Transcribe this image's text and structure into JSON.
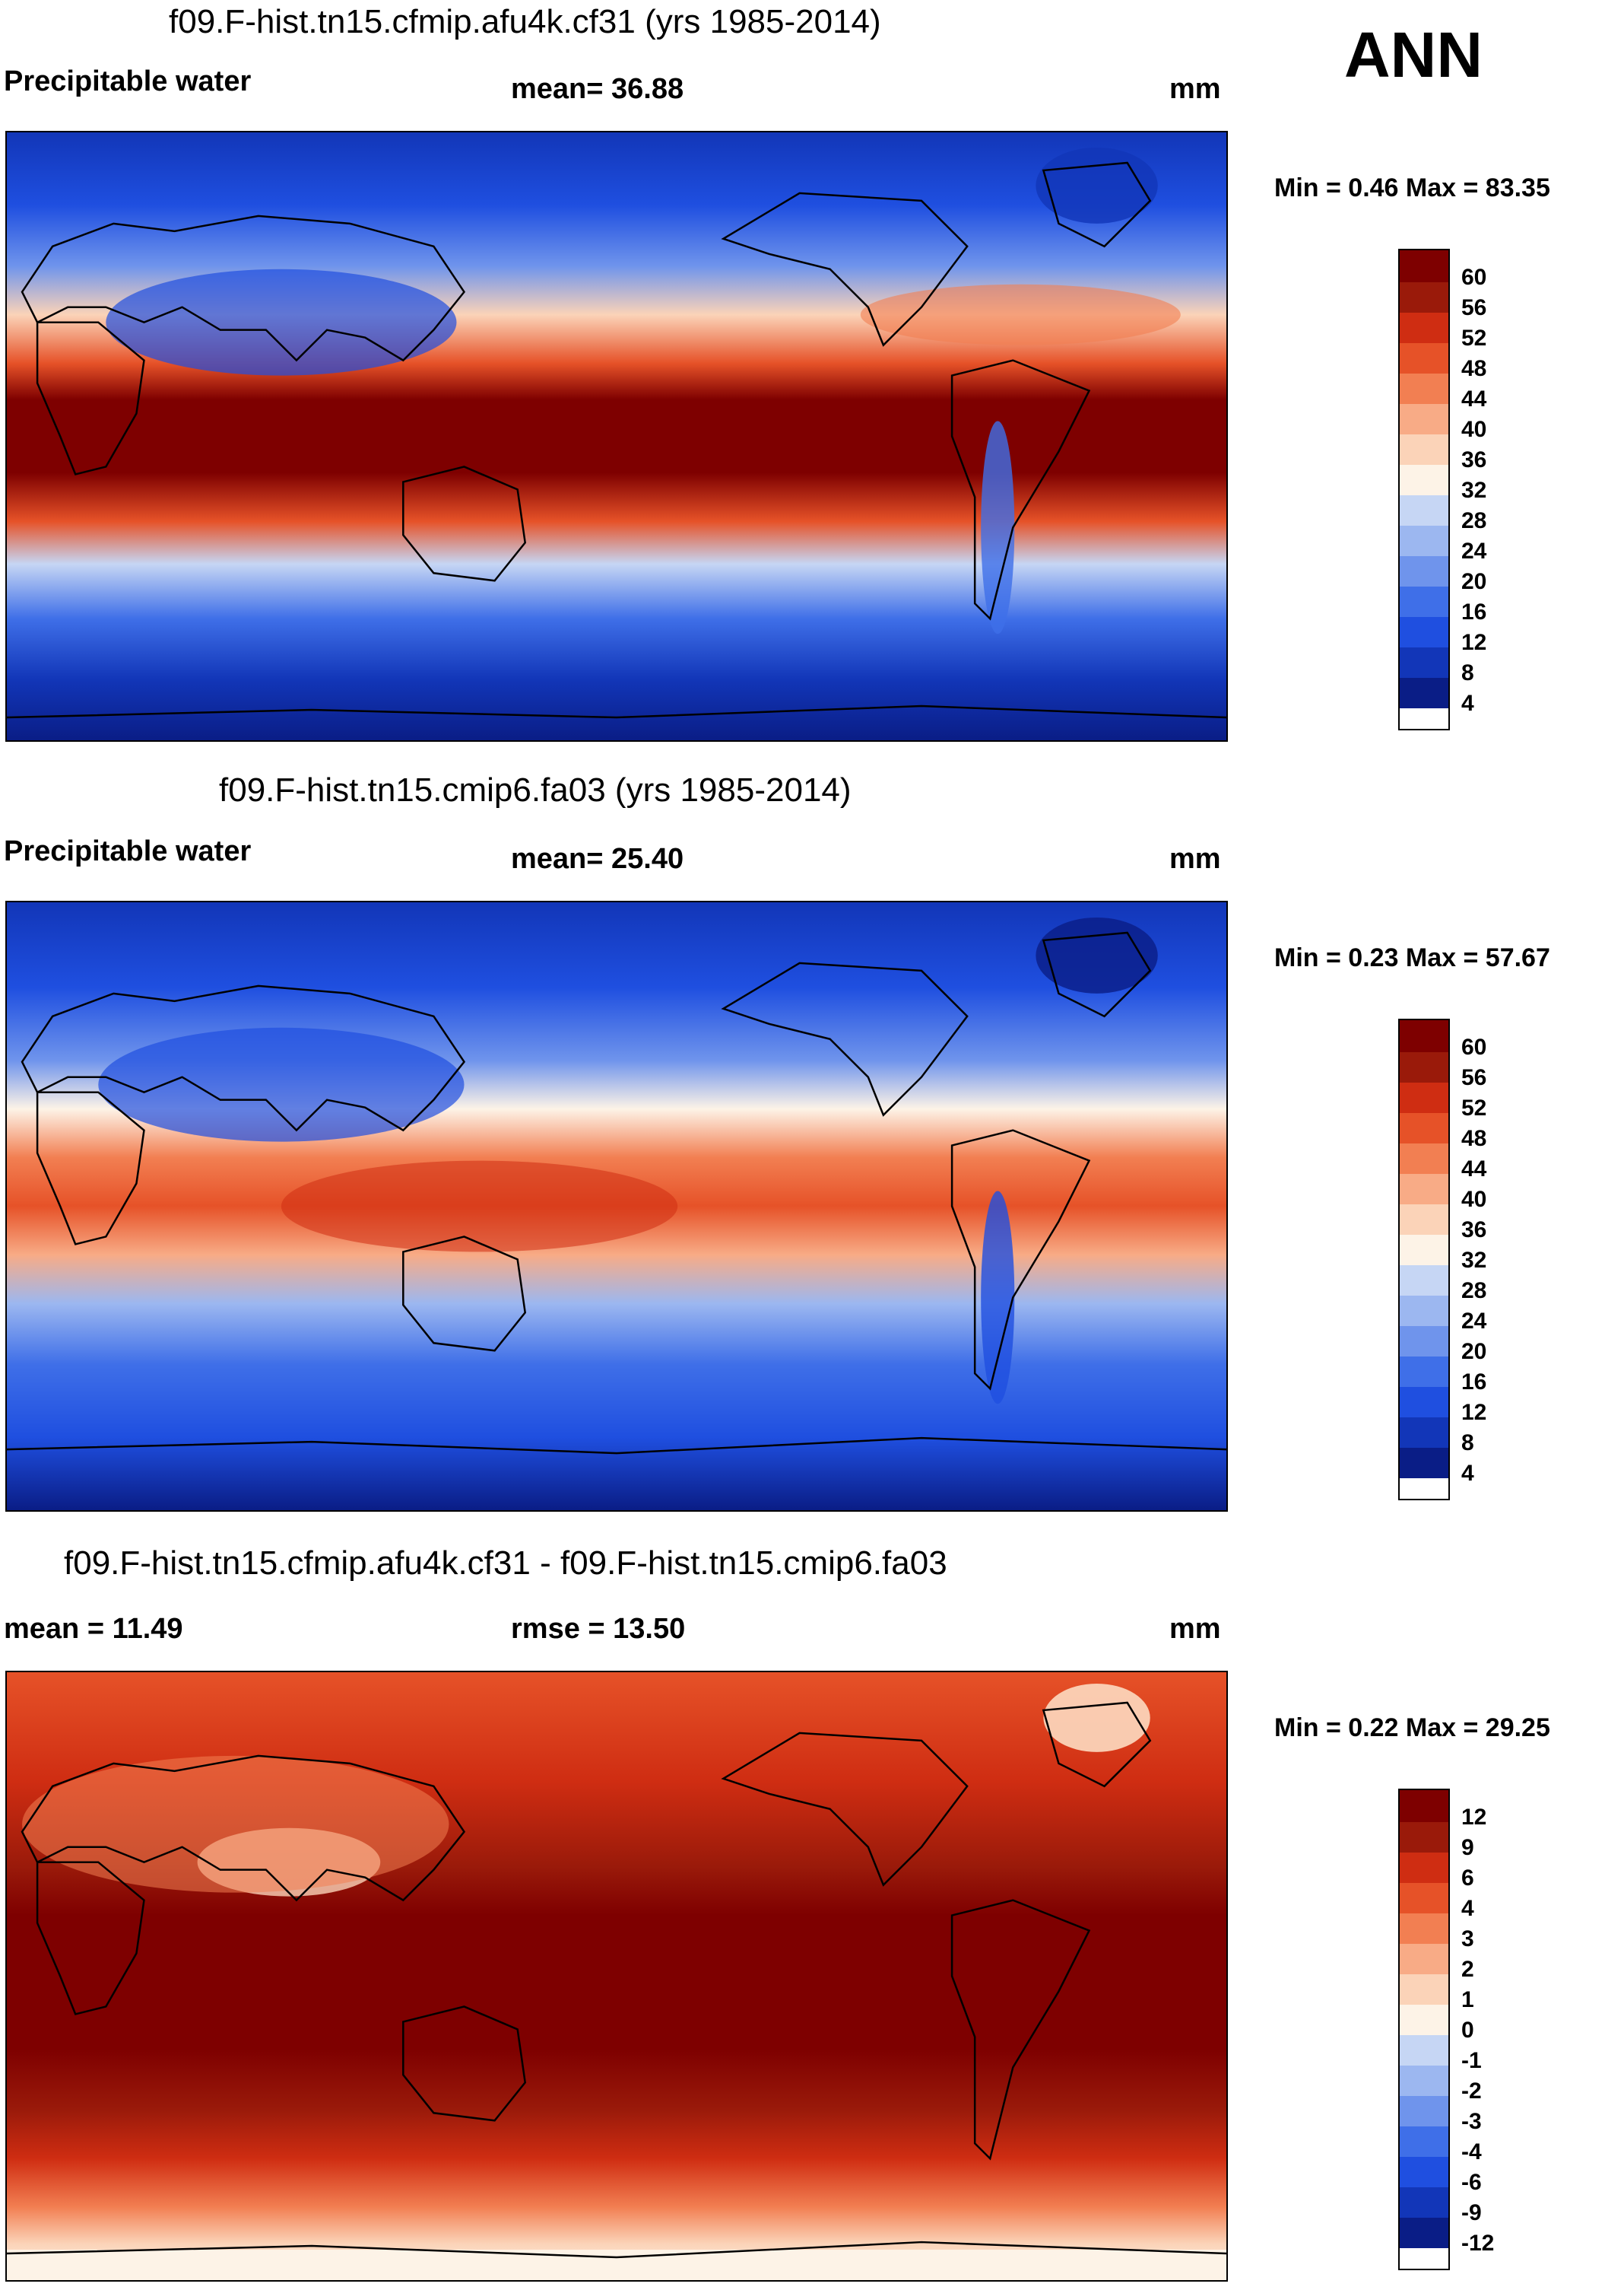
{
  "season": "ANN",
  "colors": {
    "seq": [
      "#0a1d86",
      "#1236b8",
      "#1f4fe0",
      "#3f6fe8",
      "#6f94ec",
      "#9cb7f0",
      "#c6d6f4",
      "#fdf3e7",
      "#fbd3b8",
      "#f8ab86",
      "#f27f52",
      "#e65228",
      "#cf2d12",
      "#9a1a0a",
      "#7e0000"
    ],
    "diff": [
      "#0a1d86",
      "#1236b8",
      "#1f4fe0",
      "#3f6fe8",
      "#6f94ec",
      "#9cb7f0",
      "#c6d6f4",
      "#fdf3e7",
      "#fbd3b8",
      "#f8ab86",
      "#f27f52",
      "#e65228",
      "#cf2d12",
      "#9a1a0a",
      "#7e0000"
    ]
  },
  "panels": [
    {
      "title": "f09.F-hist.tn15.cfmip.afu4k.cf31 (yrs 1985-2014)",
      "left_label": "Precipitable water",
      "center_label": "mean=  36.88",
      "units": "mm",
      "minmax": "Min =   0.46 Max =  83.35",
      "ticks": [
        "60",
        "56",
        "52",
        "48",
        "44",
        "40",
        "36",
        "32",
        "28",
        "24",
        "20",
        "16",
        "12",
        "8",
        "4"
      ]
    },
    {
      "title": "f09.F-hist.tn15.cmip6.fa03 (yrs 1985-2014)",
      "left_label": "Precipitable water",
      "center_label": "mean=  25.40",
      "units": "mm",
      "minmax": "Min =   0.23 Max =  57.67",
      "ticks": [
        "60",
        "56",
        "52",
        "48",
        "44",
        "40",
        "36",
        "32",
        "28",
        "24",
        "20",
        "16",
        "12",
        "8",
        "4"
      ]
    },
    {
      "title": "f09.F-hist.tn15.cfmip.afu4k.cf31 - f09.F-hist.tn15.cmip6.fa03",
      "left_label": "mean =  11.49",
      "center_label": "rmse =  13.50",
      "units": "mm",
      "minmax": "Min =   0.22 Max =  29.25",
      "ticks": [
        "12",
        "9",
        "6",
        "4",
        "3",
        "2",
        "1",
        "0",
        "-1",
        "-2",
        "-3",
        "-4",
        "-6",
        "-9",
        "-12"
      ]
    }
  ]
}
